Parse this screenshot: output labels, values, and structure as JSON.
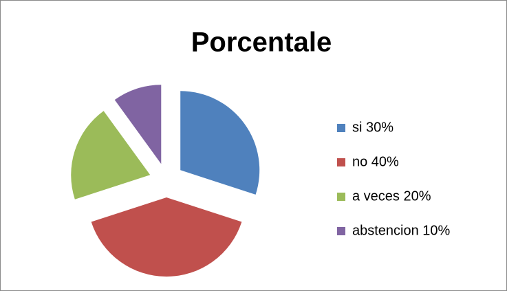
{
  "chart_data": {
    "type": "pie",
    "title": "Porcentale",
    "categories": [
      "si 30%",
      "no 40%",
      "a veces 20%",
      "abstencion 10%"
    ],
    "values": [
      30,
      40,
      20,
      10
    ],
    "colors": [
      "#4f81bd",
      "#c0504d",
      "#9bbb59",
      "#8064a2"
    ],
    "legend": "right",
    "exploded": true
  }
}
